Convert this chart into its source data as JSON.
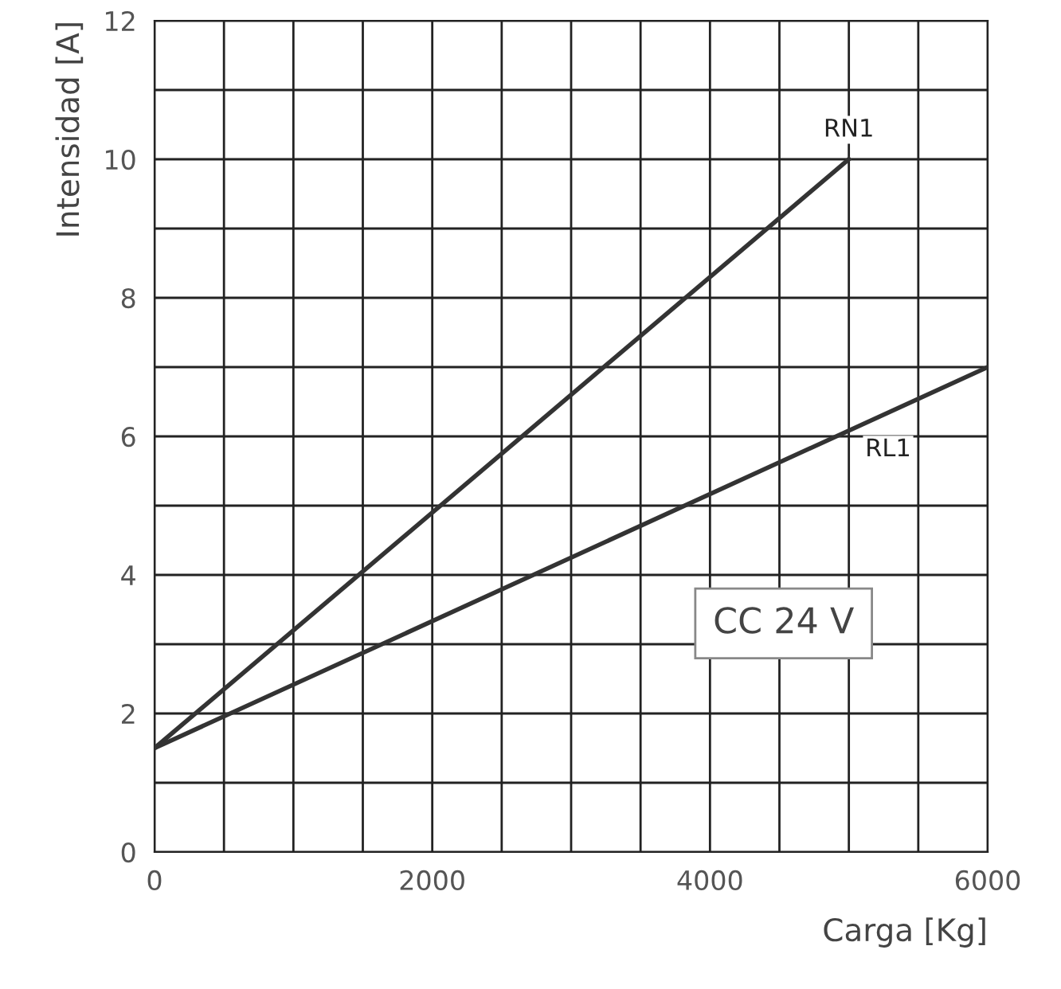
{
  "chart_data": {
    "type": "line",
    "xlabel": "Carga [Kg]",
    "ylabel": "Intensidad [A]",
    "series": [
      {
        "name": "RN1",
        "color": "#333333",
        "x": [
          0,
          5000
        ],
        "values": [
          1.5,
          10
        ]
      },
      {
        "name": "RL1",
        "color": "#333333",
        "x": [
          0,
          6000
        ],
        "values": [
          1.5,
          7
        ]
      }
    ],
    "annotations": [
      "CC 24 V"
    ],
    "xlim": [
      0,
      6000
    ],
    "ylim": [
      0,
      12
    ],
    "xticks": [
      0,
      {
        "value": 500,
        "label": null
      },
      {
        "value": 1000,
        "label": null
      },
      {
        "value": 1500,
        "label": null
      },
      2000,
      {
        "value": 2500,
        "label": null
      },
      {
        "value": 3000,
        "label": null
      },
      {
        "value": 3500,
        "label": null
      },
      4000,
      {
        "value": 4500,
        "label": null
      },
      {
        "value": 5000,
        "label": null
      },
      {
        "value": 5500,
        "label": null
      },
      6000
    ],
    "yticks": [
      0,
      {
        "value": 1,
        "label": null
      },
      2,
      {
        "value": 3,
        "label": null
      },
      4,
      {
        "value": 5,
        "label": null
      },
      6,
      {
        "value": 7,
        "label": null
      },
      8,
      {
        "value": 9,
        "label": null
      },
      10,
      {
        "value": 11,
        "label": null
      },
      12
    ],
    "grid": true,
    "legend": false,
    "marker": "none",
    "line_style": "solid"
  }
}
